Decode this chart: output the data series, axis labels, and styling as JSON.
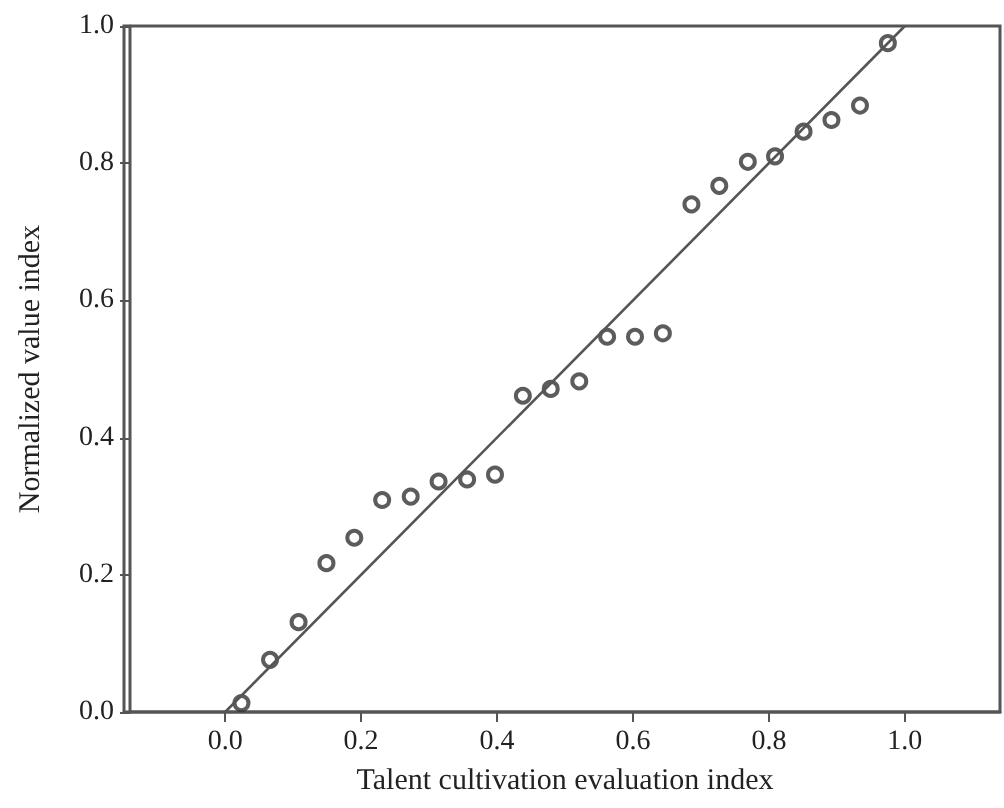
{
  "chart_data": {
    "type": "scatter",
    "xlabel": "Talent cultivation evaluation index",
    "ylabel": "Normalized value index",
    "xlim": [
      -0.14,
      1.14
    ],
    "ylim": [
      0,
      1
    ],
    "xticks": [
      {
        "value": 0,
        "label": "0.0"
      },
      {
        "value": 0.2,
        "label": "0.2"
      },
      {
        "value": 0.4,
        "label": "0.4"
      },
      {
        "value": 0.6,
        "label": "0.6"
      },
      {
        "value": 0.8,
        "label": "0.8"
      },
      {
        "value": 1,
        "label": "1.0"
      }
    ],
    "yticks": [
      {
        "value": 0,
        "label": "0.0"
      },
      {
        "value": 0.2,
        "label": "0.2"
      },
      {
        "value": 0.4,
        "label": "0.4"
      },
      {
        "value": 0.6,
        "label": "0.6"
      },
      {
        "value": 0.8,
        "label": "0.8"
      },
      {
        "value": 1,
        "label": "1.0"
      }
    ],
    "grid": false,
    "marker": "circle",
    "series": [
      {
        "color": "#333333",
        "x": [
          0.024,
          0.066,
          0.108,
          0.149,
          0.19,
          0.231,
          0.273,
          0.314,
          0.356,
          0.397,
          0.438,
          0.479,
          0.521,
          0.562,
          0.603,
          0.644,
          0.686,
          0.727,
          0.769,
          0.809,
          0.851,
          0.892,
          0.934,
          0.975
        ],
        "values": [
          0.013,
          0.076,
          0.131,
          0.217,
          0.254,
          0.309,
          0.314,
          0.336,
          0.339,
          0.346,
          0.461,
          0.471,
          0.482,
          0.547,
          0.547,
          0.552,
          0.74,
          0.767,
          0.802,
          0.81,
          0.846,
          0.863,
          0.884,
          0.975
        ]
      },
      {
        "type": "line",
        "color": "#555555",
        "line_style": "solid",
        "marker": "none",
        "x": [
          0,
          1
        ],
        "values": [
          0,
          1
        ]
      }
    ]
  }
}
